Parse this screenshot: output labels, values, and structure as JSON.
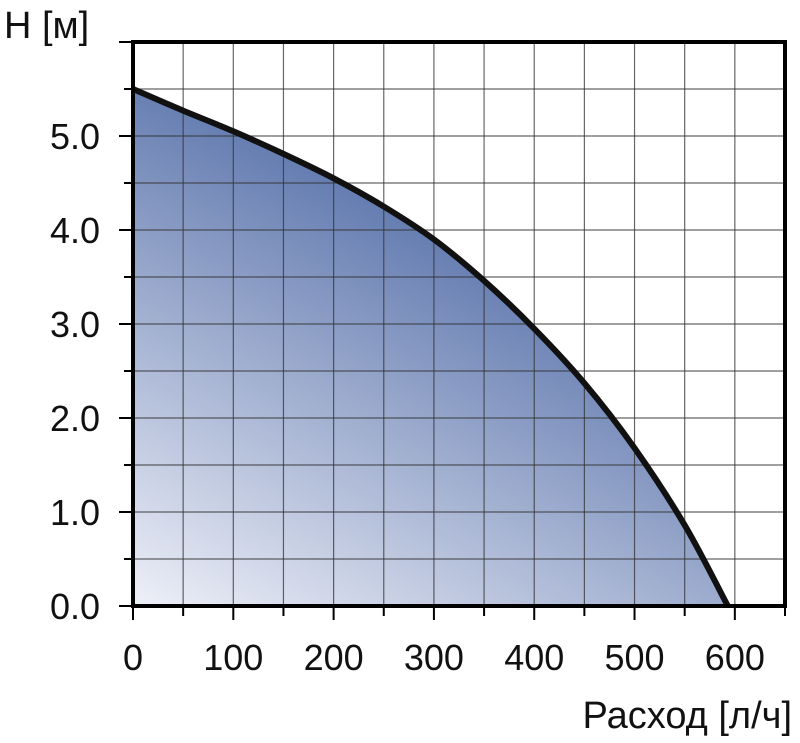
{
  "chart_data": {
    "type": "area",
    "ylabel": "H [м]",
    "xlabel": "Расход [л/ч]",
    "x_ticks": [
      "0",
      "100",
      "200",
      "300",
      "400",
      "500",
      "600"
    ],
    "y_ticks": [
      "0.0",
      "1.0",
      "2.0",
      "3.0",
      "4.0",
      "5.0"
    ],
    "xlim": [
      0,
      650
    ],
    "ylim": [
      0,
      6.0
    ],
    "grid": true,
    "series": [
      {
        "x": [
          0,
          50,
          100,
          150,
          200,
          250,
          300,
          350,
          400,
          450,
          500,
          550,
          593
        ],
        "y": [
          5.5,
          5.27,
          5.05,
          4.81,
          4.55,
          4.25,
          3.9,
          3.46,
          2.95,
          2.37,
          1.68,
          0.86,
          0.0
        ]
      }
    ],
    "colors": {
      "fill_dark": "#4a66a3",
      "fill_light": "#eef0f8",
      "curve": "#111111",
      "grid": "#333333",
      "axis": "#000000"
    }
  }
}
